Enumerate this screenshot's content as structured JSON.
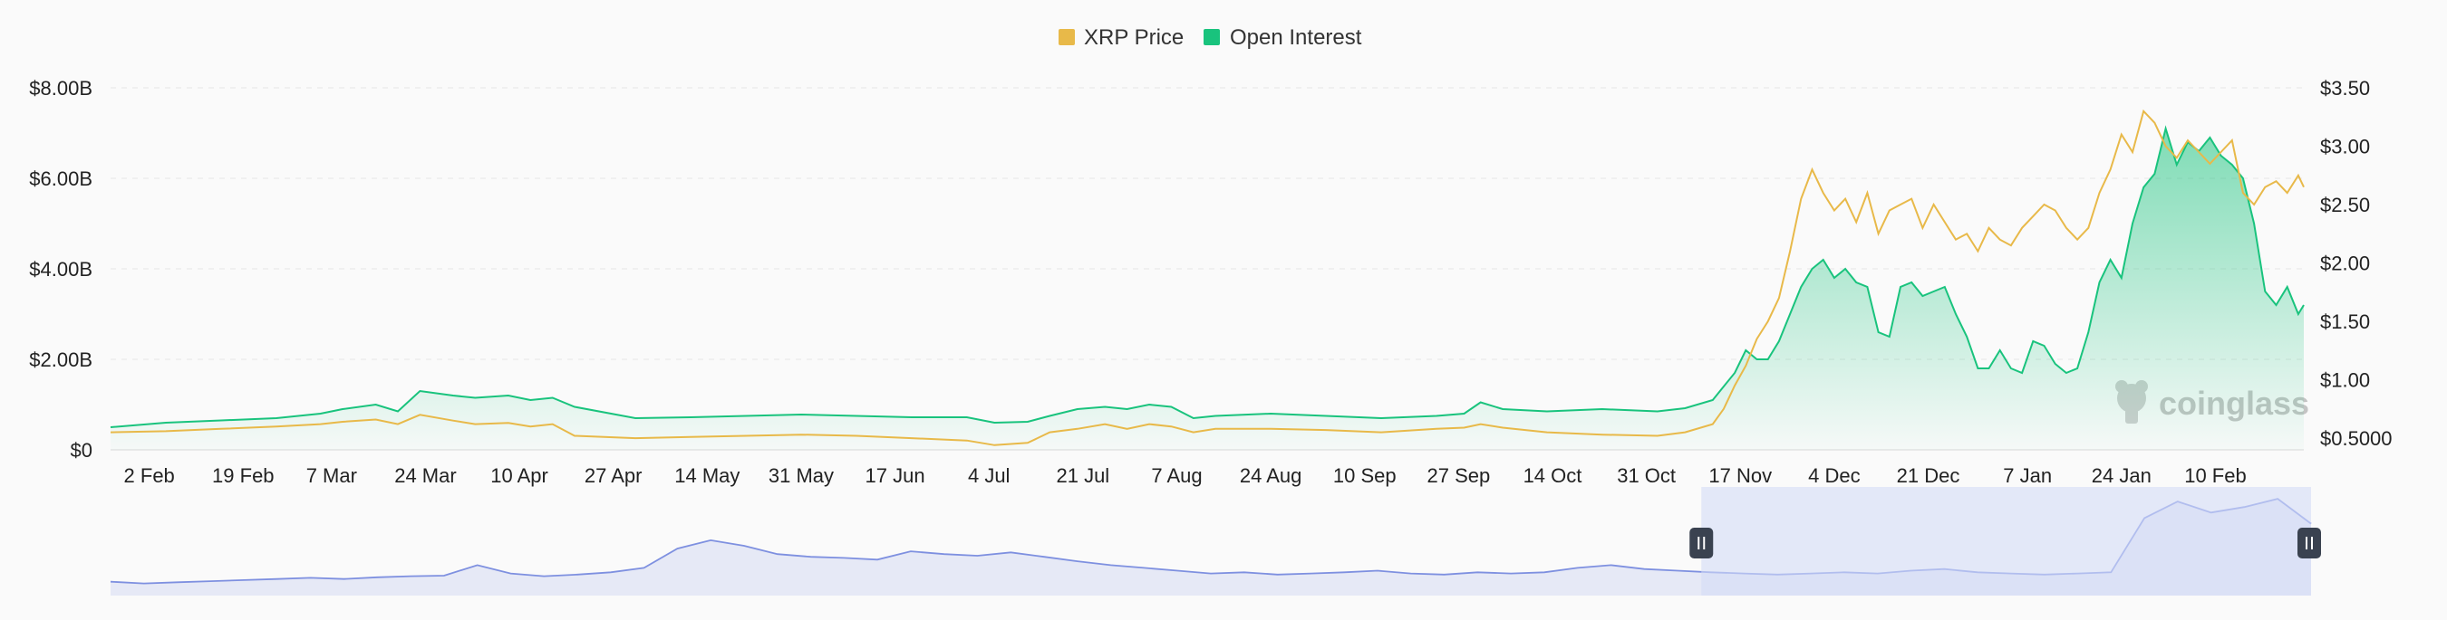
{
  "legend": {
    "price_label": "XRP Price",
    "oi_label": "Open Interest"
  },
  "watermark": "coinglass",
  "colors": {
    "price": "#e8b949",
    "oi": "#19c37d",
    "navigator_line": "#7e90e0",
    "navigator_fill": "#e6e9f6",
    "navigator_selection": "#d4dcf7"
  },
  "chart_data": {
    "type": "area",
    "left_axis": {
      "series": "Open Interest",
      "ticks": [
        "$0",
        "$2.00B",
        "$4.00B",
        "$6.00B",
        "$8.00B"
      ],
      "tick_values": [
        0,
        2,
        4,
        6,
        8
      ],
      "ylim": [
        0,
        8
      ]
    },
    "right_axis": {
      "series": "XRP Price",
      "ticks": [
        "$0.5000",
        "$1.00",
        "$1.50",
        "$2.00",
        "$2.50",
        "$3.00",
        "$3.50"
      ],
      "tick_values": [
        0.5,
        1.0,
        1.5,
        2.0,
        2.5,
        3.0,
        3.5
      ],
      "ylim": [
        0.4,
        3.5
      ]
    },
    "x_ticks": [
      "2 Feb",
      "19 Feb",
      "7 Mar",
      "24 Mar",
      "10 Apr",
      "27 Apr",
      "14 May",
      "31 May",
      "17 Jun",
      "4 Jul",
      "21 Jul",
      "7 Aug",
      "24 Aug",
      "10 Sep",
      "27 Sep",
      "14 Oct",
      "31 Oct",
      "17 Nov",
      "4 Dec",
      "21 Dec",
      "7 Jan",
      "24 Jan",
      "10 Feb"
    ],
    "x_tick_days": [
      7,
      24,
      40,
      57,
      74,
      91,
      108,
      125,
      142,
      159,
      176,
      193,
      210,
      227,
      244,
      261,
      278,
      295,
      312,
      329,
      347,
      364,
      381
    ],
    "x_range_days": [
      0,
      397
    ],
    "series": [
      {
        "name": "Open Interest",
        "unit": "USD billions",
        "days": [
          0,
          10,
          20,
          30,
          38,
          42,
          48,
          52,
          56,
          62,
          66,
          72,
          76,
          80,
          84,
          95,
          105,
          115,
          125,
          135,
          145,
          155,
          160,
          166,
          170,
          175,
          180,
          184,
          188,
          192,
          196,
          200,
          210,
          220,
          230,
          240,
          245,
          248,
          252,
          260,
          270,
          280,
          285,
          290,
          292,
          294,
          296,
          298,
          300,
          302,
          304,
          306,
          308,
          310,
          312,
          314,
          316,
          318,
          320,
          322,
          324,
          326,
          328,
          330,
          332,
          334,
          336,
          338,
          340,
          342,
          344,
          346,
          348,
          350,
          352,
          354,
          356,
          358,
          360,
          362,
          364,
          366,
          368,
          370,
          372,
          374,
          376,
          378,
          380,
          382,
          384,
          386,
          388,
          390,
          392,
          394,
          396,
          397
        ],
        "values": [
          0.5,
          0.6,
          0.65,
          0.7,
          0.8,
          0.9,
          1.0,
          0.85,
          1.3,
          1.2,
          1.15,
          1.2,
          1.1,
          1.15,
          0.95,
          0.7,
          0.72,
          0.75,
          0.78,
          0.75,
          0.72,
          0.72,
          0.6,
          0.62,
          0.75,
          0.9,
          0.95,
          0.9,
          1.0,
          0.95,
          0.7,
          0.75,
          0.8,
          0.75,
          0.7,
          0.75,
          0.8,
          1.05,
          0.9,
          0.85,
          0.9,
          0.85,
          0.92,
          1.1,
          1.4,
          1.7,
          2.2,
          2.0,
          2.0,
          2.4,
          3.0,
          3.6,
          4.0,
          4.2,
          3.8,
          4.0,
          3.7,
          3.6,
          2.6,
          2.5,
          3.6,
          3.7,
          3.4,
          3.5,
          3.6,
          3.0,
          2.5,
          1.8,
          1.8,
          2.2,
          1.8,
          1.7,
          2.4,
          2.3,
          1.9,
          1.7,
          1.8,
          2.6,
          3.7,
          4.2,
          3.8,
          5.0,
          5.8,
          6.1,
          7.1,
          6.3,
          6.8,
          6.6,
          6.9,
          6.5,
          6.3,
          6.0,
          5.0,
          3.5,
          3.2,
          3.6,
          3.0,
          3.2
        ]
      },
      {
        "name": "XRP Price",
        "unit": "USD",
        "days": [
          0,
          10,
          20,
          30,
          38,
          42,
          48,
          52,
          56,
          62,
          66,
          72,
          76,
          80,
          84,
          95,
          105,
          115,
          125,
          135,
          145,
          155,
          160,
          166,
          170,
          175,
          180,
          184,
          188,
          192,
          196,
          200,
          210,
          220,
          230,
          240,
          245,
          248,
          252,
          260,
          270,
          280,
          285,
          290,
          292,
          294,
          296,
          298,
          300,
          302,
          304,
          306,
          308,
          310,
          312,
          314,
          316,
          318,
          320,
          322,
          324,
          326,
          328,
          330,
          332,
          334,
          336,
          338,
          340,
          342,
          344,
          346,
          348,
          350,
          352,
          354,
          356,
          358,
          360,
          362,
          364,
          366,
          368,
          370,
          372,
          374,
          376,
          378,
          380,
          382,
          384,
          386,
          388,
          390,
          392,
          394,
          396,
          397
        ],
        "values": [
          0.55,
          0.56,
          0.58,
          0.6,
          0.62,
          0.64,
          0.66,
          0.62,
          0.7,
          0.65,
          0.62,
          0.63,
          0.6,
          0.62,
          0.52,
          0.5,
          0.51,
          0.52,
          0.53,
          0.52,
          0.5,
          0.48,
          0.44,
          0.46,
          0.55,
          0.58,
          0.62,
          0.58,
          0.62,
          0.6,
          0.55,
          0.58,
          0.58,
          0.57,
          0.55,
          0.58,
          0.59,
          0.62,
          0.59,
          0.55,
          0.53,
          0.52,
          0.55,
          0.62,
          0.75,
          0.95,
          1.12,
          1.35,
          1.5,
          1.7,
          2.1,
          2.55,
          2.8,
          2.6,
          2.45,
          2.55,
          2.35,
          2.6,
          2.25,
          2.45,
          2.5,
          2.55,
          2.3,
          2.5,
          2.35,
          2.2,
          2.25,
          2.1,
          2.3,
          2.2,
          2.15,
          2.3,
          2.4,
          2.5,
          2.45,
          2.3,
          2.2,
          2.3,
          2.6,
          2.8,
          3.1,
          2.95,
          3.3,
          3.2,
          3.0,
          2.9,
          3.05,
          2.95,
          2.85,
          2.95,
          3.05,
          2.6,
          2.5,
          2.65,
          2.7,
          2.6,
          2.75,
          2.65
        ]
      }
    ],
    "legend_position": "top-center",
    "grid": true
  },
  "navigator": {
    "selection_start_day": 287,
    "selection_end_day": 397,
    "values": [
      0.25,
      0.22,
      0.24,
      0.26,
      0.28,
      0.3,
      0.32,
      0.3,
      0.33,
      0.35,
      0.36,
      0.55,
      0.4,
      0.35,
      0.38,
      0.42,
      0.5,
      0.85,
      1.0,
      0.9,
      0.75,
      0.7,
      0.68,
      0.65,
      0.8,
      0.75,
      0.72,
      0.78,
      0.7,
      0.62,
      0.55,
      0.5,
      0.45,
      0.4,
      0.42,
      0.38,
      0.4,
      0.42,
      0.45,
      0.4,
      0.38,
      0.42,
      0.4,
      0.42,
      0.5,
      0.55,
      0.48,
      0.45,
      0.42,
      0.4,
      0.38,
      0.4,
      0.42,
      0.4,
      0.45,
      0.48,
      0.42,
      0.4,
      0.38,
      0.4,
      0.42,
      1.4,
      1.7,
      1.5,
      1.6,
      1.75,
      1.3
    ]
  }
}
